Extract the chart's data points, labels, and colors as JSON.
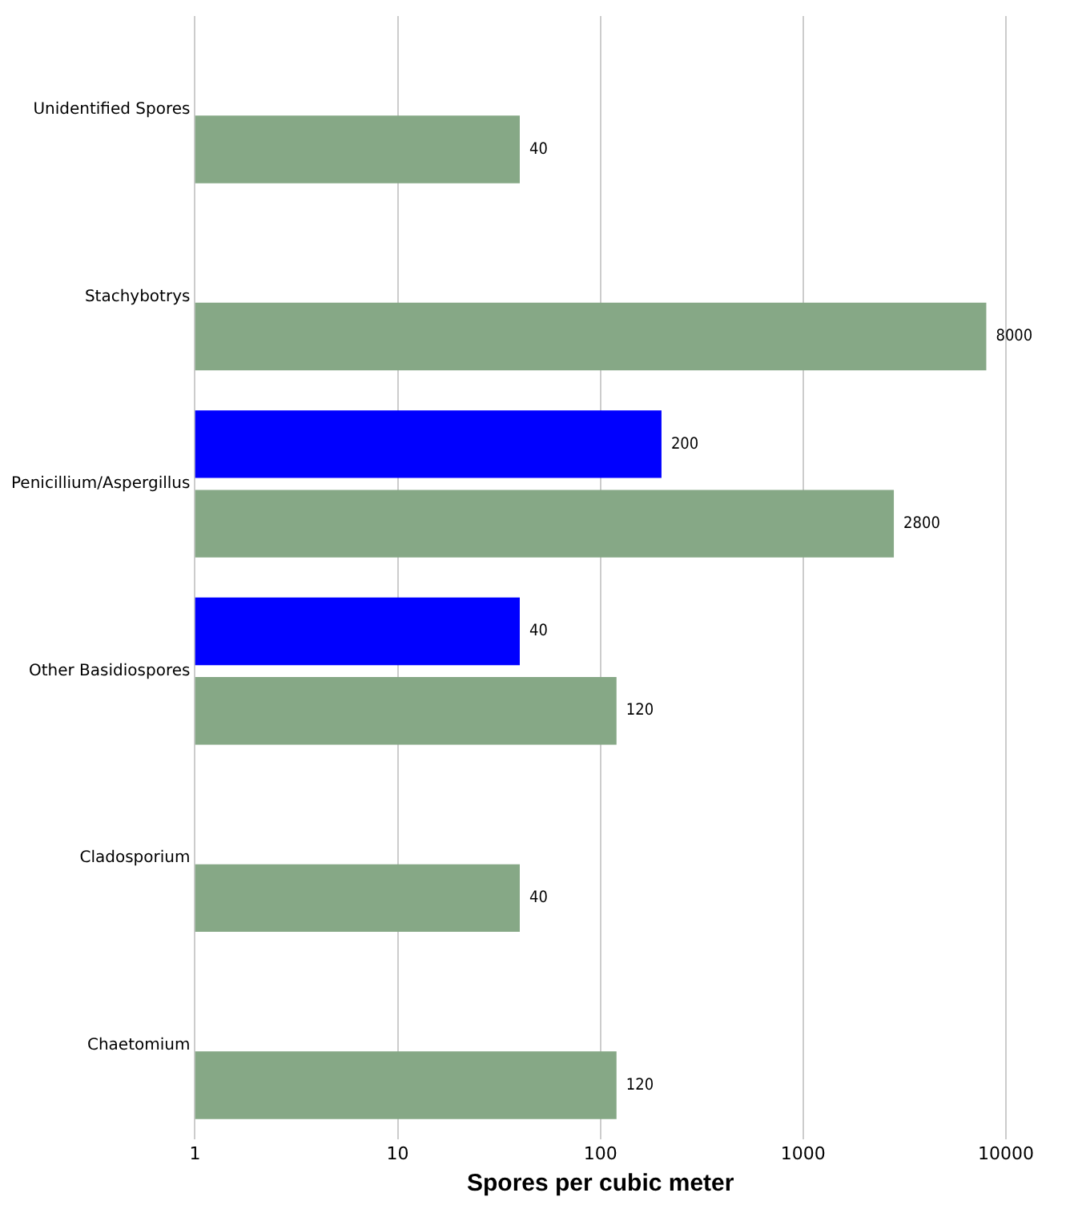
{
  "chart_data": {
    "type": "bar",
    "orientation": "horizontal",
    "xlabel": "Spores per cubic meter",
    "categories": [
      "Unidentified Spores",
      "Stachybotrys",
      "Penicillium/Aspergillus",
      "Other Basidiospores",
      "Cladosporium",
      "Chaetomium"
    ],
    "series": [
      {
        "color": "#0000ff",
        "values": [
          null,
          null,
          200,
          40,
          null,
          null
        ]
      },
      {
        "color": "#86a886",
        "values": [
          40,
          8000,
          2800,
          120,
          40,
          120
        ]
      }
    ],
    "xlim": [
      1,
      10000
    ],
    "xticks": [
      1,
      10,
      100,
      1000,
      10000
    ],
    "log": "x",
    "grid": "x",
    "data_labels": true
  }
}
